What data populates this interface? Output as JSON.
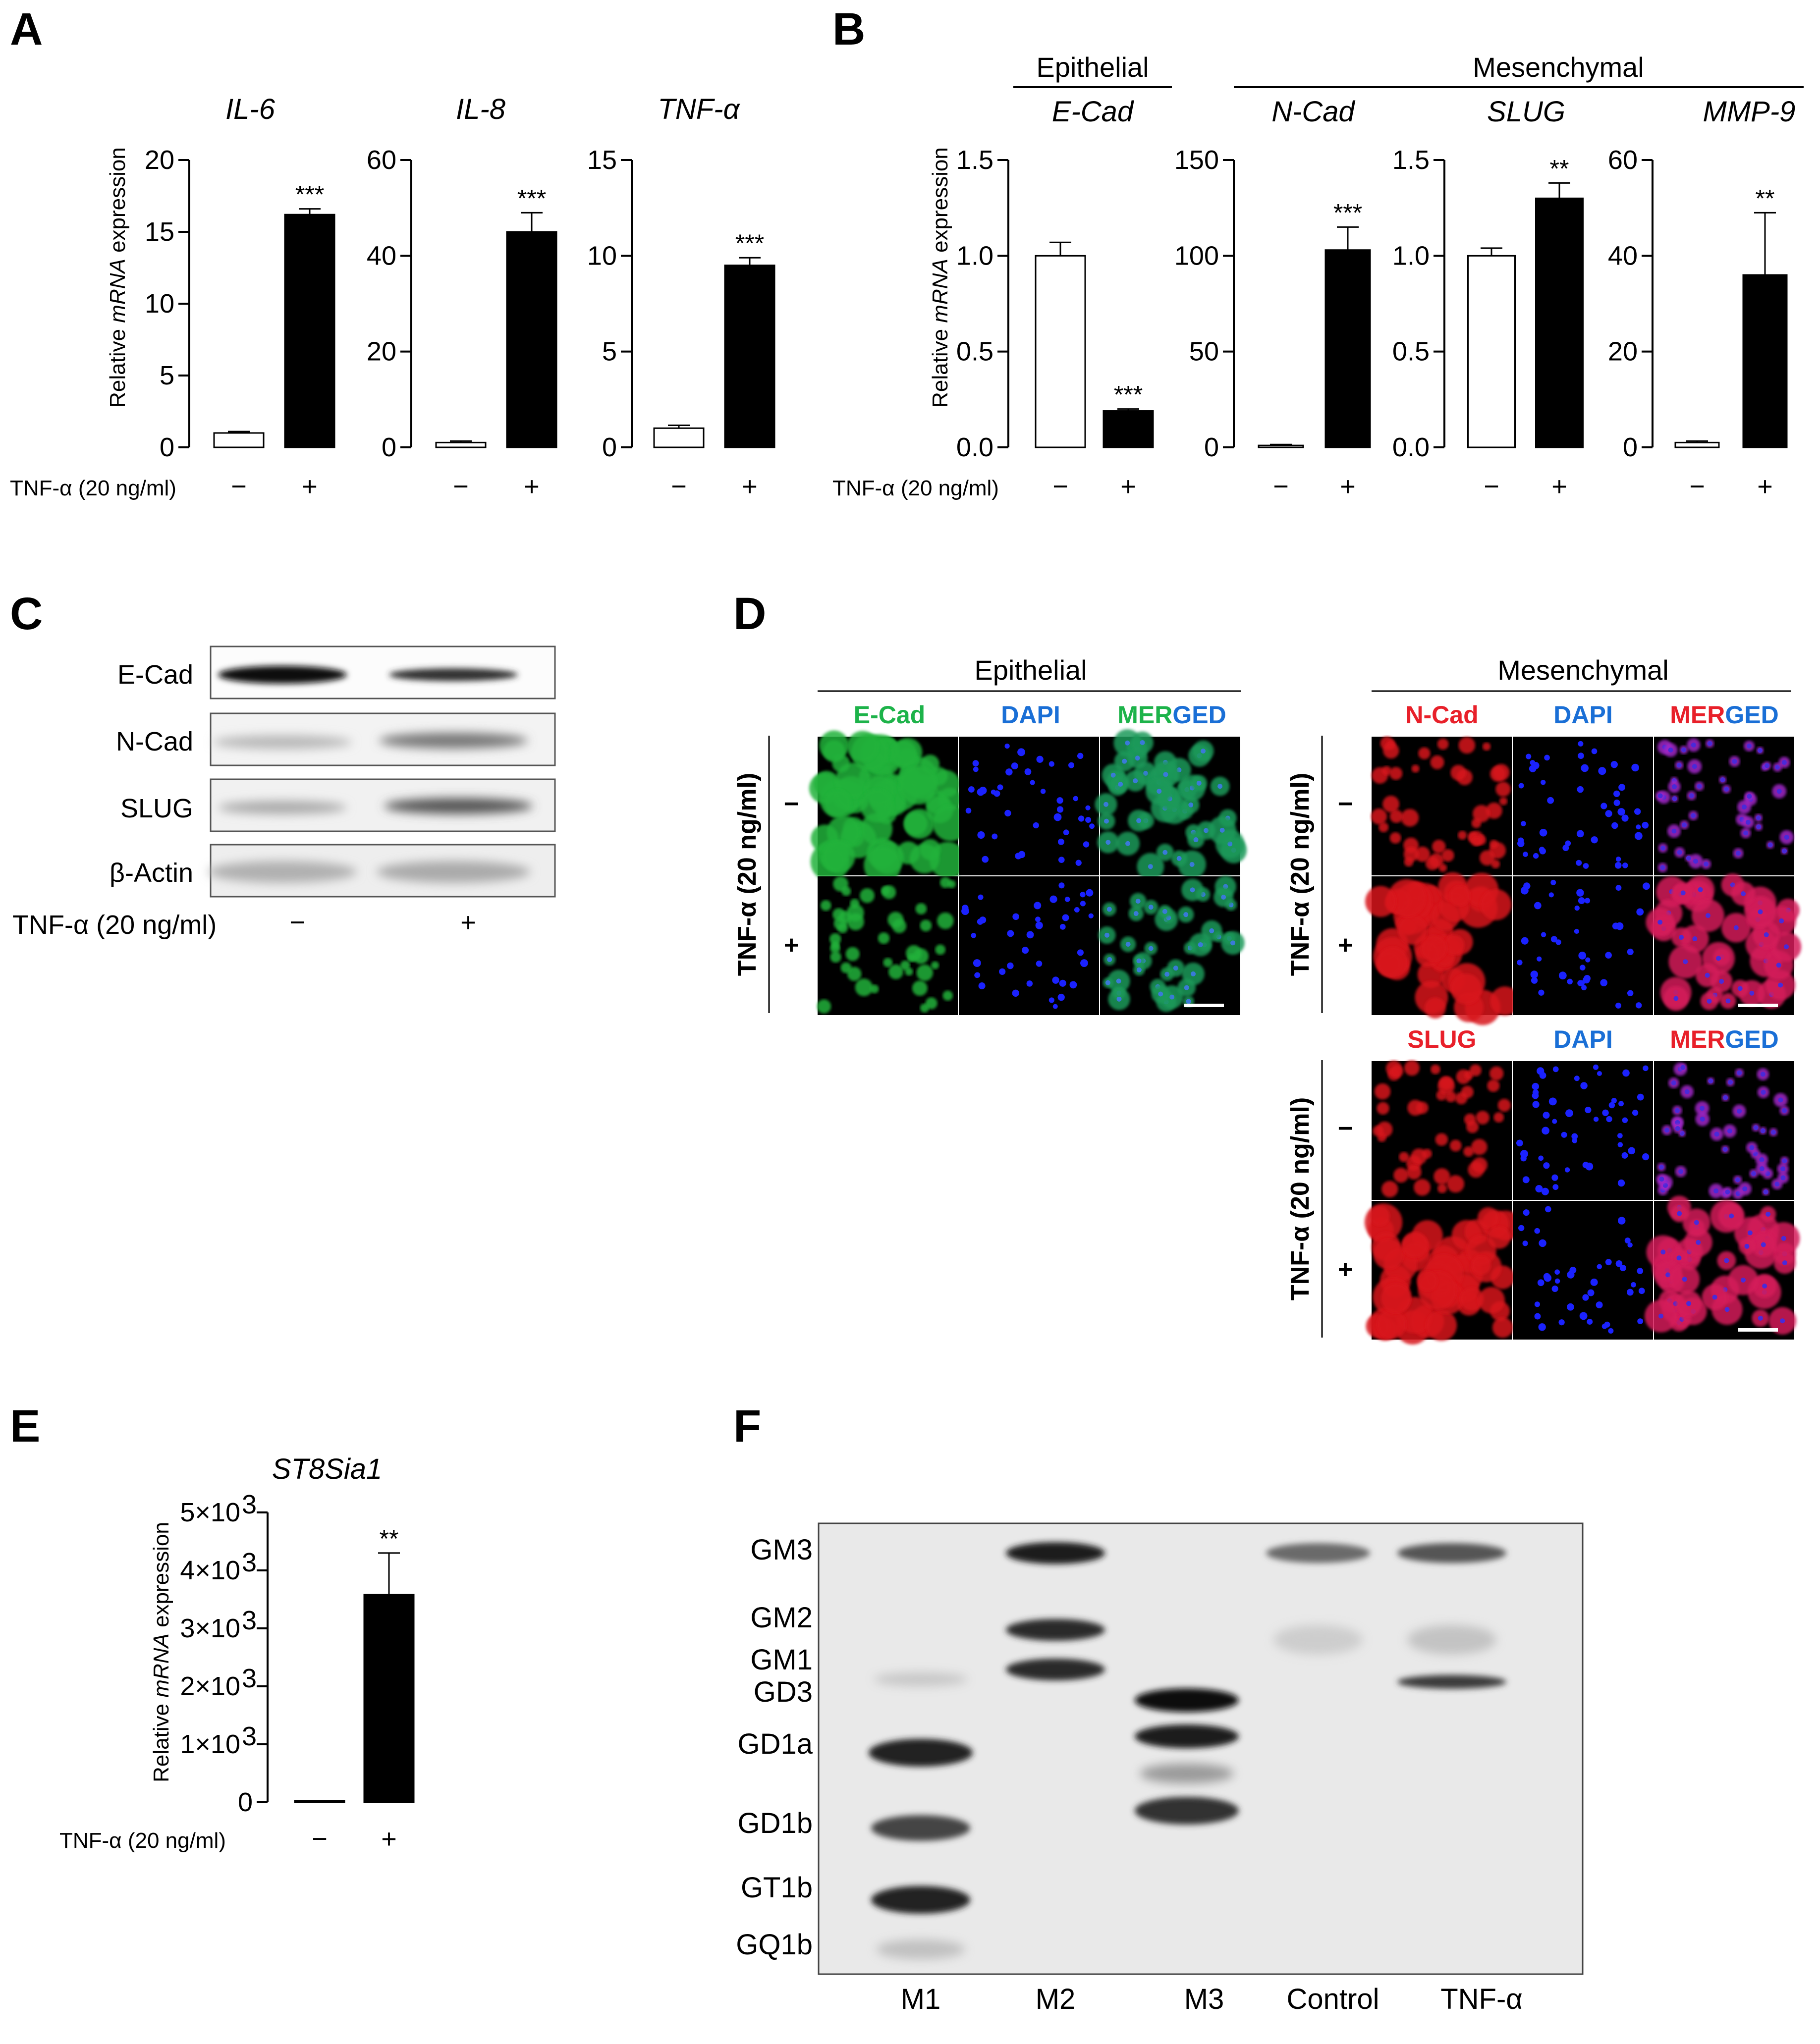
{
  "panels": {
    "A": {
      "letter": "A",
      "y_label_pre": "Relative ",
      "y_label_ital": "mRNA",
      "y_label_post": " expression",
      "condition_label": "TNF-α (20 ng/ml)",
      "minus": "−",
      "plus": "+"
    },
    "B": {
      "letter": "B",
      "group_epithelial": "Epithelial",
      "group_mesenchymal": "Mesenchymal",
      "condition_label": "TNF-α (20 ng/ml)",
      "minus": "−",
      "plus": "+"
    },
    "C": {
      "letter": "C",
      "blots": [
        "E-Cad",
        "N-Cad",
        "SLUG",
        "β-Actin"
      ],
      "condition_label": "TNF-α (20 ng/ml)",
      "minus": "−",
      "plus": "+"
    },
    "D": {
      "letter": "D",
      "group_epithelial": "Epithelial",
      "group_mesenchymal": "Mesenchymal",
      "side_label": "TNF-α (20 ng/ml)",
      "minus": "−",
      "plus": "+",
      "ecad": "E-Cad",
      "ncad": "N-Cad",
      "slug": "SLUG",
      "dapi": "DAPI",
      "merged_letters": [
        "M",
        "E",
        "R",
        "G",
        "E",
        "D"
      ],
      "colors": {
        "green": "#1db34a",
        "blue": "#1a6fd6",
        "red": "#e8202a",
        "bg": "#000000"
      }
    },
    "E": {
      "letter": "E",
      "condition_label": "TNF-α (20 ng/ml)",
      "minus": "−",
      "plus": "+"
    },
    "F": {
      "letter": "F",
      "bands": [
        "GM3",
        "GM2",
        "GM1",
        "GD3",
        "GD1a",
        "GD1b",
        "GT1b",
        "GQ1b"
      ],
      "lanes": [
        "M1",
        "M2",
        "M3",
        "Control",
        "TNF-α"
      ]
    }
  },
  "chart_data": [
    {
      "type": "bar",
      "title": "IL-6",
      "categories": [
        "−",
        "+"
      ],
      "values": [
        1.0,
        16.2
      ],
      "errors": [
        0.1,
        0.4
      ],
      "ylim": [
        0,
        20
      ],
      "yticks": [
        "0",
        "5",
        "10",
        "15",
        "20"
      ],
      "significance": [
        "",
        "***"
      ],
      "fills": [
        "#ffffff",
        "#000000"
      ]
    },
    {
      "type": "bar",
      "title": "IL-8",
      "categories": [
        "−",
        "+"
      ],
      "values": [
        1.0,
        45
      ],
      "errors": [
        0.3,
        4
      ],
      "ylim": [
        0,
        60
      ],
      "yticks": [
        "0",
        "20",
        "40",
        "60"
      ],
      "significance": [
        "",
        "***"
      ],
      "fills": [
        "#ffffff",
        "#000000"
      ]
    },
    {
      "type": "bar",
      "title": "TNF-α",
      "categories": [
        "−",
        "+"
      ],
      "values": [
        1.0,
        9.5
      ],
      "errors": [
        0.15,
        0.4
      ],
      "ylim": [
        0,
        15
      ],
      "yticks": [
        "0",
        "5",
        "10",
        "15"
      ],
      "significance": [
        "",
        "***"
      ],
      "fills": [
        "#ffffff",
        "#000000"
      ]
    },
    {
      "type": "bar",
      "title": "E-Cad",
      "categories": [
        "−",
        "+"
      ],
      "values": [
        1.0,
        0.19
      ],
      "errors": [
        0.07,
        0.01
      ],
      "ylim": [
        0,
        1.5
      ],
      "yticks": [
        "0.0",
        "0.5",
        "1.0",
        "1.5"
      ],
      "significance": [
        "",
        "***"
      ],
      "fills": [
        "#ffffff",
        "#000000"
      ]
    },
    {
      "type": "bar",
      "title": "N-Cad",
      "categories": [
        "−",
        "+"
      ],
      "values": [
        1.0,
        103
      ],
      "errors": [
        0.5,
        12
      ],
      "ylim": [
        0,
        150
      ],
      "yticks": [
        "0",
        "50",
        "100",
        "150"
      ],
      "significance": [
        "",
        "***"
      ],
      "fills": [
        "#ffffff",
        "#000000"
      ]
    },
    {
      "type": "bar",
      "title": "SLUG",
      "categories": [
        "−",
        "+"
      ],
      "values": [
        1.0,
        1.3
      ],
      "errors": [
        0.04,
        0.08
      ],
      "ylim": [
        0,
        1.5
      ],
      "yticks": [
        "0.0",
        "0.5",
        "1.0",
        "1.5"
      ],
      "significance": [
        "",
        "**"
      ],
      "fills": [
        "#ffffff",
        "#000000"
      ]
    },
    {
      "type": "bar",
      "title": "MMP-9",
      "categories": [
        "−",
        "+"
      ],
      "values": [
        1.0,
        36
      ],
      "errors": [
        0.3,
        13
      ],
      "ylim": [
        0,
        60
      ],
      "yticks": [
        "0",
        "20",
        "40",
        "60"
      ],
      "significance": [
        "",
        "**"
      ],
      "fills": [
        "#ffffff",
        "#000000"
      ]
    },
    {
      "type": "bar",
      "title": "ST8Sia1",
      "categories": [
        "−",
        "+"
      ],
      "values": [
        1,
        3580
      ],
      "errors": [
        0,
        720
      ],
      "ylim": [
        0,
        5000
      ],
      "yticks": [
        "0",
        "1×10",
        "2×10",
        "3×10",
        "4×10",
        "5×10"
      ],
      "ytick_exp": "3",
      "significance": [
        "",
        "**"
      ],
      "fills": [
        "#ffffff",
        "#000000"
      ],
      "ylabel_pre": "Relative ",
      "ylabel_ital": "mRNA",
      "ylabel_post": " expression"
    }
  ]
}
